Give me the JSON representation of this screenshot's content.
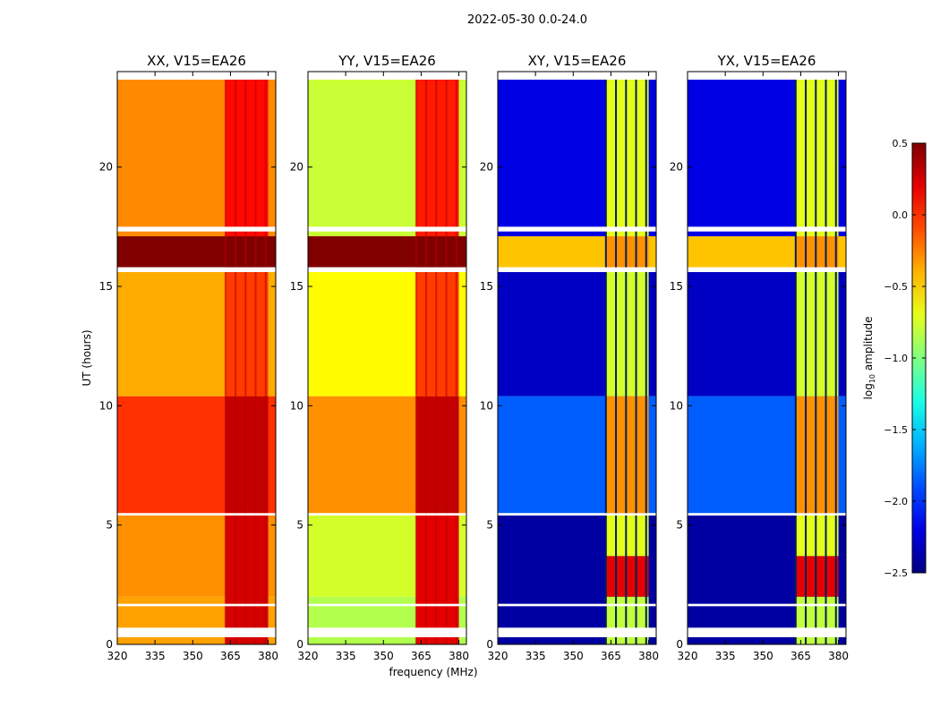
{
  "figure_title": "2022-05-30 0.0-24.0",
  "chart_data": {
    "type": "heatmap",
    "title": "2022-05-30 0.0-24.0",
    "xlabel": "frequency (MHz)",
    "ylabel": "UT (hours)",
    "xlim": [
      320,
      383
    ],
    "ylim": [
      0,
      24
    ],
    "x_ticks": [
      320,
      335,
      350,
      365,
      380
    ],
    "y_ticks": [
      0,
      5,
      10,
      15,
      20
    ],
    "colormap": "jet",
    "colorbar": {
      "label": "log10 amplitude",
      "label_base": "log",
      "label_sub": "10",
      "label_rest": " amplitude",
      "range": [
        -2.5,
        0.5
      ],
      "ticks": [
        {
          "value": -2.5,
          "label": "−2.5"
        },
        {
          "value": -2.0,
          "label": "−2.0"
        },
        {
          "value": -1.5,
          "label": "−1.5"
        },
        {
          "value": -1.0,
          "label": "−1.0"
        },
        {
          "value": -0.5,
          "label": "−0.5"
        },
        {
          "value": 0.0,
          "label": "0.0"
        },
        {
          "value": 0.5,
          "label": "0.5"
        }
      ]
    },
    "rfi_band_mhz": [
      363,
      380
    ],
    "rfi_channels_mhz": [
      363,
      367,
      371,
      375,
      379
    ],
    "flagged_ut_hours": [
      0.3,
      0.7,
      1.6,
      1.7,
      5.4,
      5.5,
      15.6,
      15.8,
      17.3,
      17.5
    ],
    "panels": [
      {
        "title": "XX, V15=EA26",
        "base_by_ut": [
          {
            "from": 0,
            "to": 2,
            "value": -0.35
          },
          {
            "from": 2,
            "to": 5.4,
            "value": -0.3
          },
          {
            "from": 5.5,
            "to": 10.4,
            "value": -0.02
          },
          {
            "from": 10.4,
            "to": 15.6,
            "value": -0.38
          },
          {
            "from": 15.8,
            "to": 17.1,
            "value": 0.5
          },
          {
            "from": 17.1,
            "to": 24,
            "value": -0.28
          }
        ],
        "rfi_by_ut": [
          {
            "from": 0,
            "to": 5.4,
            "value": 0.25
          },
          {
            "from": 5.5,
            "to": 10.4,
            "value": 0.3
          },
          {
            "from": 10.4,
            "to": 15.6,
            "value": -0.05
          },
          {
            "from": 15.8,
            "to": 17.1,
            "value": 0.5
          },
          {
            "from": 17.1,
            "to": 24,
            "value": 0.1
          }
        ]
      },
      {
        "title": "YY, V15=EA26",
        "base_by_ut": [
          {
            "from": 0,
            "to": 2,
            "value": -0.85
          },
          {
            "from": 2,
            "to": 5.4,
            "value": -0.75
          },
          {
            "from": 5.5,
            "to": 10.4,
            "value": -0.3
          },
          {
            "from": 10.4,
            "to": 15.6,
            "value": -0.62
          },
          {
            "from": 15.8,
            "to": 17.1,
            "value": 0.5
          },
          {
            "from": 17.1,
            "to": 24,
            "value": -0.78
          }
        ],
        "rfi_by_ut": [
          {
            "from": 0,
            "to": 5.4,
            "value": 0.2
          },
          {
            "from": 5.5,
            "to": 10.4,
            "value": 0.3
          },
          {
            "from": 10.4,
            "to": 15.6,
            "value": -0.05
          },
          {
            "from": 15.8,
            "to": 17.1,
            "value": 0.5
          },
          {
            "from": 17.1,
            "to": 24,
            "value": 0.05
          }
        ]
      },
      {
        "title": "XY, V15=EA26",
        "base_by_ut": [
          {
            "from": 0,
            "to": 5.4,
            "value": -2.4
          },
          {
            "from": 5.5,
            "to": 10.4,
            "value": -1.85
          },
          {
            "from": 10.4,
            "to": 15.6,
            "value": -2.3
          },
          {
            "from": 15.8,
            "to": 17.1,
            "value": -0.45
          },
          {
            "from": 17.1,
            "to": 24,
            "value": -2.2
          }
        ],
        "rfi_by_ut": [
          {
            "from": 0,
            "to": 2,
            "value": -0.8
          },
          {
            "from": 2,
            "to": 3.7,
            "value": 0.2
          },
          {
            "from": 3.7,
            "to": 5.4,
            "value": -0.7
          },
          {
            "from": 5.5,
            "to": 10.4,
            "value": -0.3
          },
          {
            "from": 10.4,
            "to": 15.6,
            "value": -0.75
          },
          {
            "from": 15.8,
            "to": 17.1,
            "value": -0.3
          },
          {
            "from": 17.1,
            "to": 24,
            "value": -0.7
          }
        ]
      },
      {
        "title": "YX, V15=EA26",
        "base_by_ut": [
          {
            "from": 0,
            "to": 5.4,
            "value": -2.4
          },
          {
            "from": 5.5,
            "to": 10.4,
            "value": -1.85
          },
          {
            "from": 10.4,
            "to": 15.6,
            "value": -2.3
          },
          {
            "from": 15.8,
            "to": 17.1,
            "value": -0.45
          },
          {
            "from": 17.1,
            "to": 24,
            "value": -2.2
          }
        ],
        "rfi_by_ut": [
          {
            "from": 0,
            "to": 2,
            "value": -0.8
          },
          {
            "from": 2,
            "to": 3.7,
            "value": 0.2
          },
          {
            "from": 3.7,
            "to": 5.4,
            "value": -0.7
          },
          {
            "from": 5.5,
            "to": 10.4,
            "value": -0.3
          },
          {
            "from": 10.4,
            "to": 15.6,
            "value": -0.75
          },
          {
            "from": 15.8,
            "to": 17.1,
            "value": -0.3
          },
          {
            "from": 17.1,
            "to": 24,
            "value": -0.7
          }
        ]
      }
    ]
  }
}
